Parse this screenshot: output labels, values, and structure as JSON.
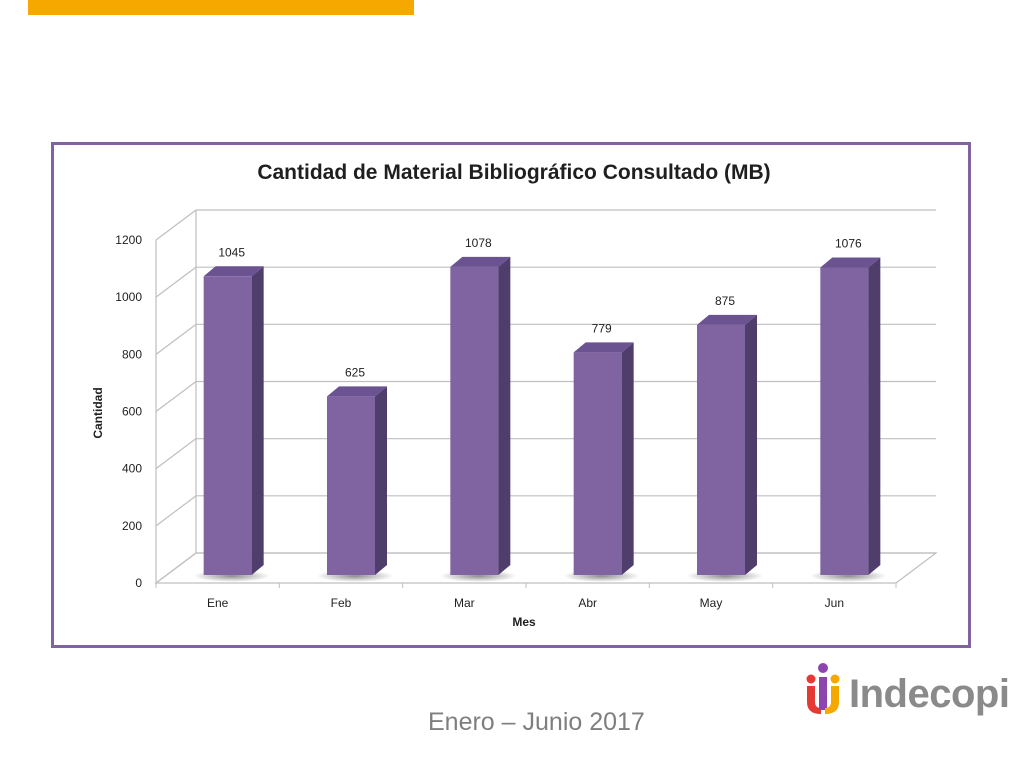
{
  "chart_data": {
    "type": "bar",
    "title": "Cantidad de Material Bibliográfico Consultado (MB)",
    "xlabel": "Mes",
    "ylabel": "Cantidad",
    "categories": [
      "Ene",
      "Feb",
      "Mar",
      "Abr",
      "May",
      "Jun"
    ],
    "values": [
      1045,
      625,
      1078,
      779,
      875,
      1076
    ],
    "data_labels": [
      "1045",
      "625",
      "1078",
      "779",
      "875",
      "1076"
    ],
    "ylim": [
      0,
      1200
    ],
    "yticks": [
      "0",
      "200",
      "400",
      "600",
      "800",
      "1000",
      "1200"
    ],
    "grid": true,
    "style": "3d-bar",
    "bar_color": "#8064A2"
  },
  "footer": {
    "date_range": "Enero – Junio 2017"
  },
  "brand": {
    "name": "Indecopi",
    "accent_color": "#F6A800"
  }
}
